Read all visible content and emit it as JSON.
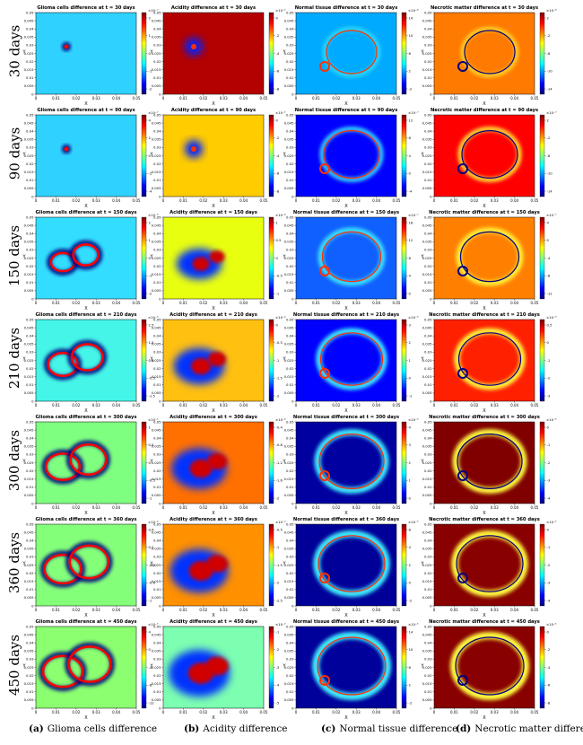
{
  "rows": [
    {
      "label": "30 days",
      "t": 30
    },
    {
      "label": "90 days",
      "t": 90
    },
    {
      "label": "150 days",
      "t": 150
    },
    {
      "label": "210 days",
      "t": 210
    },
    {
      "label": "300 days",
      "t": 300
    },
    {
      "label": "360 days",
      "t": 360
    },
    {
      "label": "450 days",
      "t": 450
    }
  ],
  "captions": [
    {
      "letter": "(a)",
      "text": "Glioma cells difference"
    },
    {
      "letter": "(b)",
      "text": "Acidity difference"
    },
    {
      "letter": "(c)",
      "text": "Normal tissue difference"
    },
    {
      "letter": "(d)",
      "text": "Necrotic matter difference"
    }
  ],
  "chart_data": {
    "type": "heatmap",
    "colormap": "jet",
    "x_label": "X",
    "y_label": "Y",
    "xlim": [
      0,
      0.05
    ],
    "ylim": [
      0,
      0.05
    ],
    "x_ticks": [
      "0",
      "0.01",
      "0.02",
      "0.03",
      "0.04",
      "0.05"
    ],
    "y_ticks": [
      "0",
      "0.005",
      "0.01",
      "0.015",
      "0.02",
      "0.025",
      "0.03",
      "0.035",
      "0.04",
      "0.045",
      "0.05"
    ],
    "panel_title_template": "{var} difference at t = {t} days",
    "variables": [
      "Glioma cells",
      "Acidity",
      "Normal tissue",
      "Necrotic matter"
    ],
    "panels": [
      {
        "row": 0,
        "col": 0,
        "title": "Glioma cells difference at t = 30 days",
        "colorbar_ticks": [
          "2",
          "1",
          "0",
          "-1",
          "-2"
        ],
        "exponent": "×10⁻⁷"
      },
      {
        "row": 0,
        "col": 1,
        "title": "Acidity difference at t = 30 days",
        "colorbar_ticks": [
          "0",
          "-2",
          "-4",
          "-6",
          "-8"
        ],
        "exponent": "×10⁻⁵"
      },
      {
        "row": 0,
        "col": 2,
        "title": "Normal tissue difference at t = 30 days",
        "colorbar_ticks": [
          "14",
          "10",
          "6",
          "2",
          "-2"
        ],
        "exponent": "×10⁻⁸"
      },
      {
        "row": 0,
        "col": 3,
        "title": "Necrotic matter difference at t = 30 days",
        "colorbar_ticks": [
          "2",
          "-2",
          "-6",
          "-10",
          "-14"
        ],
        "exponent": "×10⁻⁸"
      },
      {
        "row": 1,
        "col": 0,
        "title": "Glioma cells difference at t = 90 days",
        "colorbar_ticks": [
          "4",
          "2",
          "0",
          "-2",
          "-4"
        ],
        "exponent": "×10⁻⁷"
      },
      {
        "row": 1,
        "col": 1,
        "title": "Acidity difference at t = 90 days",
        "colorbar_ticks": [
          "0",
          "-2",
          "-4",
          "-6",
          "-8"
        ],
        "exponent": "×10⁻⁵"
      },
      {
        "row": 1,
        "col": 2,
        "title": "Normal tissue difference at t = 90 days",
        "colorbar_ticks": [
          "12",
          "8",
          "4",
          "0",
          "-4"
        ],
        "exponent": "×10⁻⁷"
      },
      {
        "row": 1,
        "col": 3,
        "title": "Necrotic matter difference at t = 90 days",
        "colorbar_ticks": [
          "2",
          "-2",
          "-6",
          "-10",
          "-14"
        ],
        "exponent": "×10⁻⁷"
      },
      {
        "row": 2,
        "col": 0,
        "title": "Glioma cells difference at t = 150 days",
        "colorbar_ticks": [
          "2",
          "1",
          "0",
          "-1",
          "-2"
        ],
        "exponent": "×10⁻⁶"
      },
      {
        "row": 2,
        "col": 1,
        "title": "Acidity difference at t = 150 days",
        "colorbar_ticks": [
          "1",
          "0.5",
          "0",
          "-0.5",
          "-1"
        ],
        "exponent": "×10⁻⁴"
      },
      {
        "row": 2,
        "col": 2,
        "title": "Normal tissue difference at t = 150 days",
        "colorbar_ticks": [
          "16",
          "12",
          "8",
          "4",
          "0"
        ],
        "exponent": "×10⁻⁷"
      },
      {
        "row": 2,
        "col": 3,
        "title": "Necrotic matter difference at t = 150 days",
        "colorbar_ticks": [
          "4",
          "0",
          "-4",
          "-8",
          "-12"
        ],
        "exponent": "×10⁻⁷"
      },
      {
        "row": 3,
        "col": 0,
        "title": "Glioma cells difference at t = 210 days",
        "colorbar_ticks": [
          "2.5",
          "1.5",
          "0.5",
          "-0.5",
          "-1.5"
        ],
        "exponent": "×10⁻⁶"
      },
      {
        "row": 3,
        "col": 1,
        "title": "Acidity difference at t = 210 days",
        "colorbar_ticks": [
          "0",
          "-0.5",
          "-1",
          "-1.5",
          "-2"
        ],
        "exponent": "×10⁻⁴"
      },
      {
        "row": 3,
        "col": 2,
        "title": "Normal tissue difference at t = 210 days",
        "colorbar_ticks": [
          "3",
          "2",
          "1",
          "0",
          "-1"
        ],
        "exponent": "×10⁻⁶"
      },
      {
        "row": 3,
        "col": 3,
        "title": "Necrotic matter difference at t = 210 days",
        "colorbar_ticks": [
          "0.5",
          "0",
          "-1",
          "-2",
          "-3"
        ],
        "exponent": "×10⁻⁶"
      },
      {
        "row": 4,
        "col": 0,
        "title": "Glioma cells difference at t = 300 days",
        "colorbar_ticks": [
          "1",
          "0.5",
          "0",
          "-0.5",
          "-1"
        ],
        "exponent": "×10⁻⁵"
      },
      {
        "row": 4,
        "col": 1,
        "title": "Acidity difference at t = 300 days",
        "colorbar_ticks": [
          "-0.4",
          "-0.8",
          "-1.2",
          "-1.6",
          "-2"
        ],
        "exponent": "×10⁻³"
      },
      {
        "row": 4,
        "col": 2,
        "title": "Normal tissue difference at t = 300 days",
        "colorbar_ticks": [
          "4",
          "3",
          "2",
          "1",
          "0"
        ],
        "exponent": "×10⁻⁵"
      },
      {
        "row": 4,
        "col": 3,
        "title": "Necrotic matter difference at t = 300 days",
        "colorbar_ticks": [
          "0",
          "-1",
          "-2",
          "-3",
          "-4"
        ],
        "exponent": "×10⁻⁵"
      },
      {
        "row": 5,
        "col": 0,
        "title": "Glioma cells difference at t = 360 days",
        "colorbar_ticks": [
          "0.6",
          "0.2",
          "-0.2",
          "-0.6",
          "-1"
        ],
        "exponent": "×10⁻⁴"
      },
      {
        "row": 5,
        "col": 1,
        "title": "Acidity difference at t = 360 days",
        "colorbar_ticks": [
          "-0.5",
          "-1",
          "-1.5",
          "-2",
          "-2.5"
        ],
        "exponent": "×10⁻³"
      },
      {
        "row": 5,
        "col": 2,
        "title": "Normal tissue difference at t = 360 days",
        "colorbar_ticks": [
          "6",
          "4",
          "2",
          "0",
          "-2"
        ],
        "exponent": "×10⁻⁵"
      },
      {
        "row": 5,
        "col": 3,
        "title": "Necrotic matter difference at t = 360 days",
        "colorbar_ticks": [
          "0",
          "-1",
          "-2",
          "-3",
          "-4"
        ],
        "exponent": "×10⁻⁵"
      },
      {
        "row": 6,
        "col": 0,
        "title": "Glioma cells difference at t = 450 days",
        "colorbar_ticks": [
          "4",
          "0",
          "-4",
          "-8",
          "-12"
        ],
        "exponent": "×10⁻⁵"
      },
      {
        "row": 6,
        "col": 1,
        "title": "Acidity difference at t = 450 days",
        "colorbar_ticks": [
          "-1",
          "-2",
          "-3",
          "-4",
          "-5"
        ],
        "exponent": "×10⁻³"
      },
      {
        "row": 6,
        "col": 2,
        "title": "Normal tissue difference at t = 450 days",
        "colorbar_ticks": [
          "14",
          "10",
          "6",
          "2",
          "-2"
        ],
        "exponent": "×10⁻⁵"
      },
      {
        "row": 6,
        "col": 3,
        "title": "Necrotic matter difference at t = 450 days",
        "colorbar_ticks": [
          "0",
          "-2",
          "-4",
          "-6",
          "-8"
        ],
        "exponent": "×10⁻⁵"
      }
    ]
  },
  "colors": {
    "jet_stops": [
      "#00007f",
      "#0000ff",
      "#007fff",
      "#00ffff",
      "#7fff7f",
      "#ffff00",
      "#ff7f00",
      "#ff0000",
      "#7f0000"
    ]
  }
}
